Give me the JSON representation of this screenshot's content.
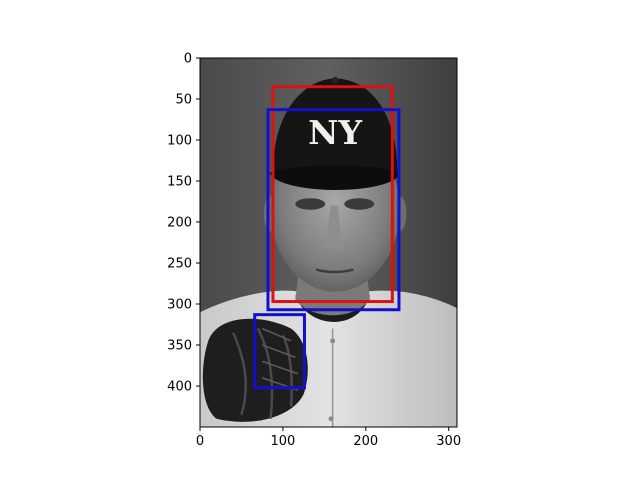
{
  "chart_data": {
    "type": "image-with-bounding-boxes",
    "image_description_label": "grayscale photo of baseball pitcher in NY cap",
    "xlim": [
      0,
      310
    ],
    "ylim": [
      450,
      0
    ],
    "x_ticks": [
      0,
      100,
      200,
      300
    ],
    "y_ticks": [
      0,
      50,
      100,
      150,
      200,
      250,
      300,
      350,
      400
    ],
    "boxes": [
      {
        "name": "red-box",
        "color": "#dd1111",
        "x0": 88,
        "y0": 35,
        "x1": 232,
        "y1": 297
      },
      {
        "name": "blue-box-face",
        "color": "#1111cc",
        "x0": 82,
        "y0": 63,
        "x1": 240,
        "y1": 307
      },
      {
        "name": "blue-box-glove",
        "color": "#1111cc",
        "x0": 66,
        "y0": 313,
        "x1": 126,
        "y1": 402
      }
    ],
    "cap_logo_text": "NY"
  }
}
